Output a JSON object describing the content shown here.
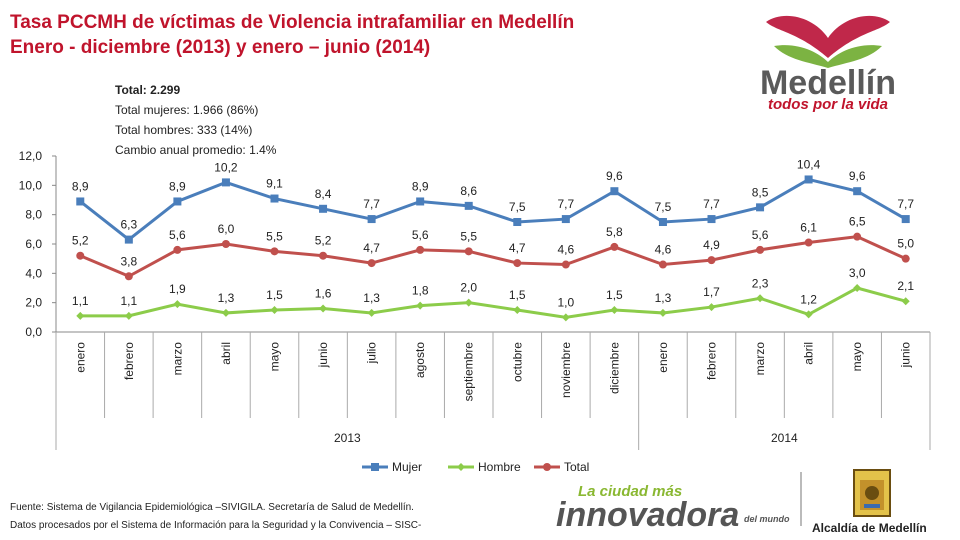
{
  "header": {
    "title_line1": "Tasa PCCMH de víctimas de Violencia intrafamiliar en Medellín",
    "title_line2": "Enero - diciembre (2013) y enero – junio (2014)"
  },
  "stats": {
    "total": "Total: 2.299",
    "mujeres": "Total mujeres: 1.966 (86%)",
    "hombres": "Total hombres: 333 (14%)",
    "cambio": "Cambio anual promedio: 1.4%"
  },
  "logos": {
    "medellin_word": "Medellín",
    "medellin_tag": "todos por la vida",
    "ciudad_line1": "La ciudad más",
    "ciudad_line2": "innovadora",
    "ciudad_line3": "del mundo",
    "alcaldia": "Alcaldía de Medellín"
  },
  "footer": {
    "line1": "Fuente: Sistema de Vigilancia Epidemiológica –SIVIGILA. Secretaría de Salud de Medellín.",
    "line2": "Datos procesados por el Sistema de Información para la Seguridad y la Convivencia – SISC-"
  },
  "colors": {
    "mujer": "#4a7ebb",
    "hombre": "#8ccc4a",
    "total": "#c0504d",
    "title": "#c0142c"
  },
  "chart_data": {
    "type": "line",
    "ylim": [
      0,
      12
    ],
    "yticks": [
      "0,0",
      "2,0",
      "4,0",
      "6,0",
      "8,0",
      "10,0",
      "12,0"
    ],
    "categories": [
      "enero",
      "febrero",
      "marzo",
      "abril",
      "mayo",
      "junio",
      "julio",
      "agosto",
      "septiembre",
      "octubre",
      "noviembre",
      "diciembre",
      "enero",
      "febrero",
      "marzo",
      "abril",
      "mayo",
      "junio"
    ],
    "groups": [
      {
        "label": "2013",
        "count": 12
      },
      {
        "label": "2014",
        "count": 6
      }
    ],
    "grid": false,
    "legend_position": "bottom",
    "series": [
      {
        "name": "Mujer",
        "color": "#4a7ebb",
        "marker": "square",
        "values": [
          8.9,
          6.3,
          8.9,
          10.2,
          9.1,
          8.4,
          7.7,
          8.9,
          8.6,
          7.5,
          7.7,
          9.6,
          7.5,
          7.7,
          8.5,
          10.4,
          9.6,
          7.7
        ],
        "labels": [
          "8,9",
          "6,3",
          "8,9",
          "10,2",
          "9,1",
          "8,4",
          "7,7",
          "8,9",
          "8,6",
          "7,5",
          "7,7",
          "9,6",
          "7,5",
          "7,7",
          "8,5",
          "10,4",
          "9,6",
          "7,7"
        ]
      },
      {
        "name": "Hombre",
        "color": "#8ccc4a",
        "marker": "diamond",
        "values": [
          1.1,
          1.1,
          1.9,
          1.3,
          1.5,
          1.6,
          1.3,
          1.8,
          2.0,
          1.5,
          1.0,
          1.5,
          1.3,
          1.7,
          2.3,
          1.2,
          3.0,
          2.1
        ],
        "labels": [
          "1,1",
          "1,1",
          "1,9",
          "1,3",
          "1,5",
          "1,6",
          "1,3",
          "1,8",
          "2,0",
          "1,5",
          "1,0",
          "1,5",
          "1,3",
          "1,7",
          "2,3",
          "1,2",
          "3,0",
          "2,1"
        ]
      },
      {
        "name": "Total",
        "color": "#c0504d",
        "marker": "circle",
        "values": [
          5.2,
          3.8,
          5.6,
          6.0,
          5.5,
          5.2,
          4.7,
          5.6,
          5.5,
          4.7,
          4.6,
          5.8,
          4.6,
          4.9,
          5.6,
          6.1,
          6.5,
          5.0
        ],
        "labels": [
          "5,2",
          "3,8",
          "5,6",
          "6,0",
          "5,5",
          "5,2",
          "4,7",
          "5,6",
          "5,5",
          "4,7",
          "4,6",
          "5,8",
          "4,6",
          "4,9",
          "5,6",
          "6,1",
          "6,5",
          "5,0"
        ]
      }
    ]
  }
}
